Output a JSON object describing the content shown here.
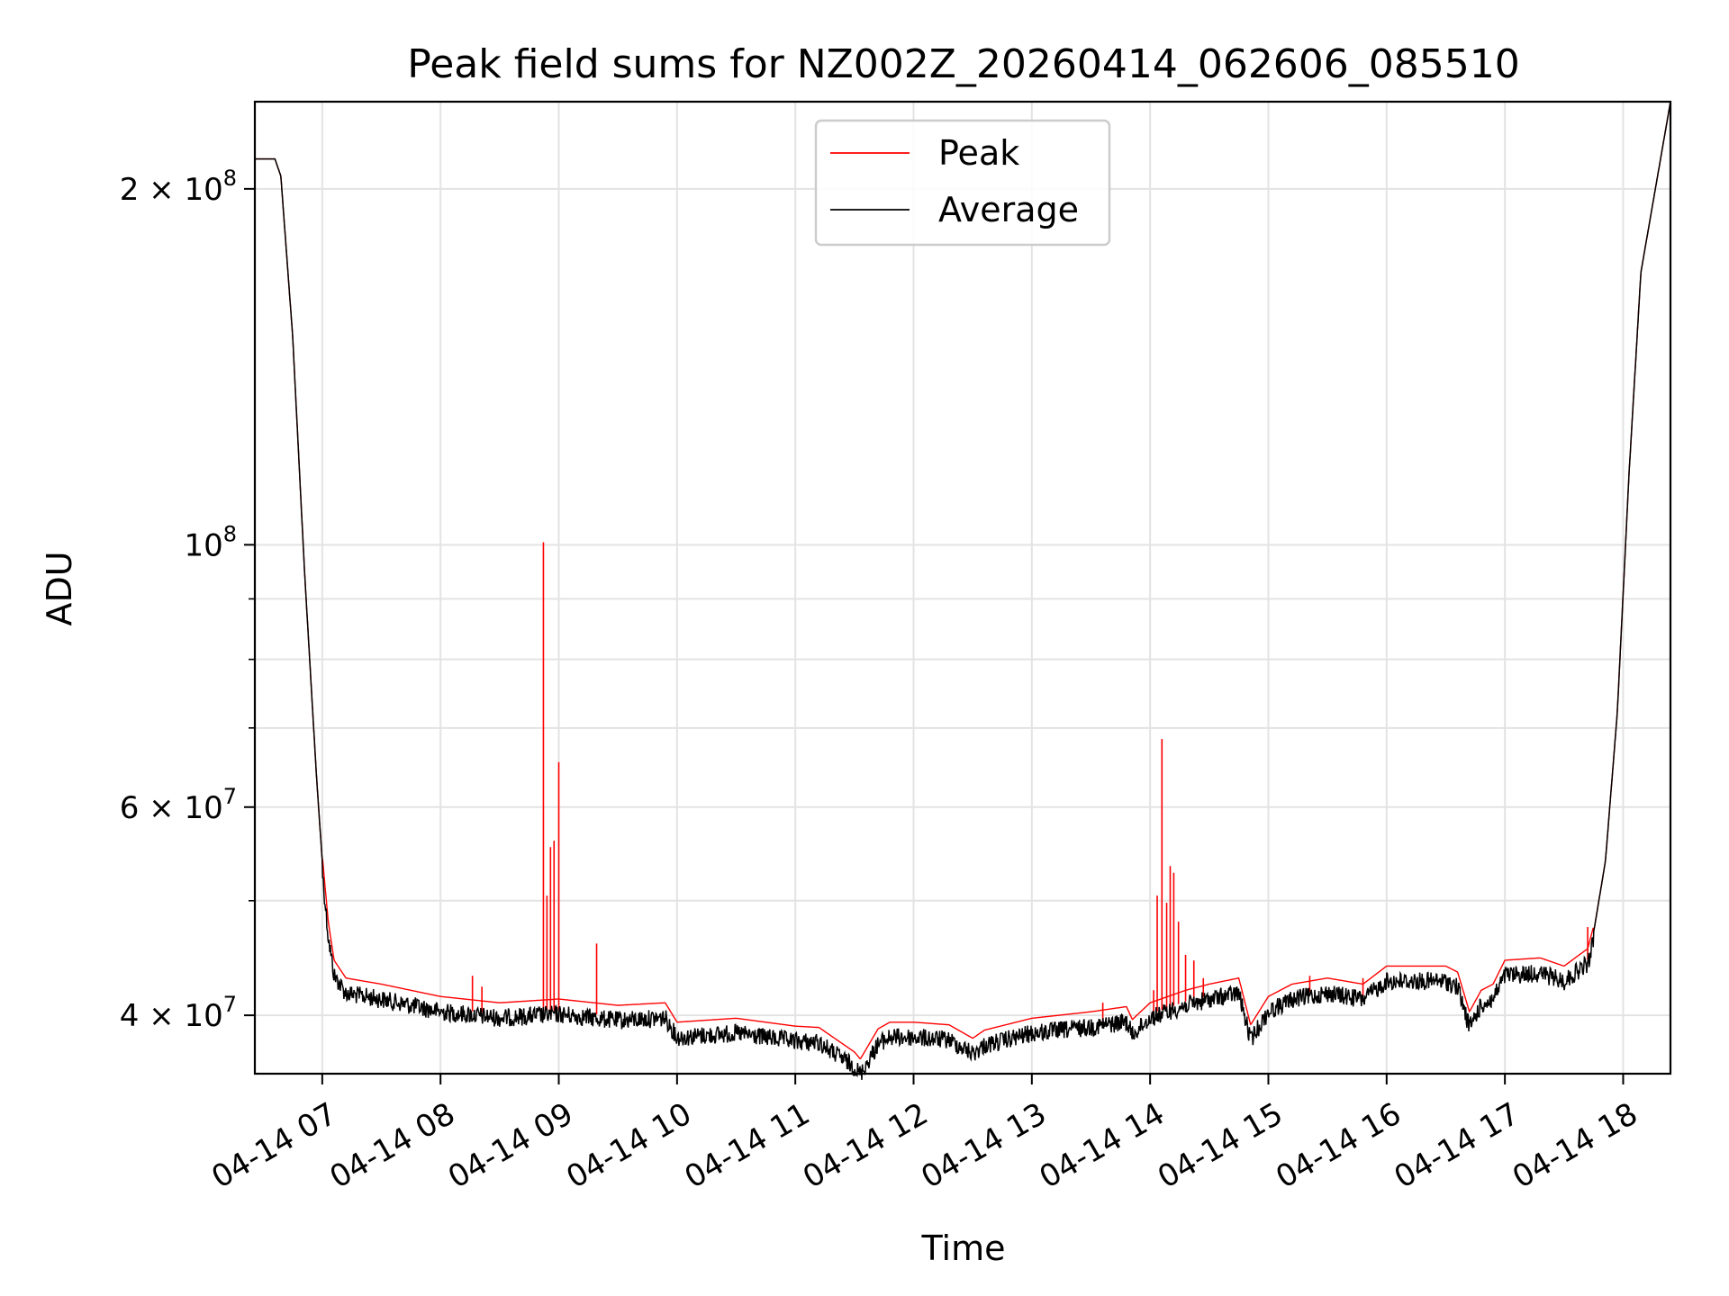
{
  "chart_data": {
    "type": "line",
    "title": "Peak field sums for NZ002Z_20260414_062606_085510",
    "xlabel": "Time",
    "ylabel": "ADU",
    "yscale": "log",
    "grid": true,
    "legend_position": "top-center",
    "x_unit": "hours",
    "xlim": [
      6.43,
      18.4
    ],
    "ylim": [
      35700000,
      237000000
    ],
    "x_ticks": [
      {
        "value": 7,
        "label": "04-14 07"
      },
      {
        "value": 8,
        "label": "04-14 08"
      },
      {
        "value": 9,
        "label": "04-14 09"
      },
      {
        "value": 10,
        "label": "04-14 10"
      },
      {
        "value": 11,
        "label": "04-14 11"
      },
      {
        "value": 12,
        "label": "04-14 12"
      },
      {
        "value": 13,
        "label": "04-14 13"
      },
      {
        "value": 14,
        "label": "04-14 14"
      },
      {
        "value": 15,
        "label": "04-14 15"
      },
      {
        "value": 16,
        "label": "04-14 16"
      },
      {
        "value": 17,
        "label": "04-14 17"
      },
      {
        "value": 18,
        "label": "04-14 18"
      }
    ],
    "y_ticks_major": [
      {
        "value": 40000000,
        "base": "4 × 10",
        "exp": "7"
      },
      {
        "value": 60000000,
        "base": "6 × 10",
        "exp": "7"
      },
      {
        "value": 100000000,
        "base": "10",
        "exp": "8"
      },
      {
        "value": 200000000,
        "base": "2 × 10",
        "exp": "8"
      }
    ],
    "y_ticks_minor": [
      50000000,
      70000000,
      80000000,
      90000000
    ],
    "series": [
      {
        "name": "Average",
        "color": "#000000",
        "x": [
          6.43,
          6.6,
          6.65,
          6.75,
          6.85,
          6.95,
          7.0,
          7.05,
          7.1,
          7.2,
          7.5,
          8.0,
          8.5,
          9.0,
          9.5,
          9.9,
          10.0,
          10.5,
          11.0,
          11.2,
          11.5,
          11.55,
          11.7,
          11.8,
          12.0,
          12.3,
          12.5,
          12.6,
          13.0,
          13.5,
          13.8,
          13.85,
          14.0,
          14.3,
          14.5,
          14.75,
          14.85,
          15.0,
          15.2,
          15.5,
          15.8,
          16.0,
          16.5,
          16.6,
          16.7,
          16.8,
          16.9,
          17.0,
          17.3,
          17.5,
          17.7,
          17.75,
          17.85,
          17.95,
          18.05,
          18.15,
          18.4
        ],
        "y": [
          212000000,
          212000000,
          205000000,
          150000000,
          95000000,
          64000000,
          54000000,
          47500000,
          44000000,
          42500000,
          42000000,
          41000000,
          40500000,
          40800000,
          40300000,
          40500000,
          39000000,
          39300000,
          38700000,
          38600000,
          36800000,
          36300000,
          38500000,
          39000000,
          39000000,
          38800000,
          37800000,
          38400000,
          39300000,
          39800000,
          40200000,
          39200000,
          40500000,
          41500000,
          42000000,
          42500000,
          38800000,
          41000000,
          42000000,
          42500000,
          42000000,
          43500000,
          43500000,
          43000000,
          39800000,
          41500000,
          42000000,
          44000000,
          44200000,
          43500000,
          45000000,
          47000000,
          54000000,
          72000000,
          115000000,
          170000000,
          237000000
        ]
      },
      {
        "name": "Peak",
        "color": "#ff0000",
        "spikes": [
          {
            "x": 8.27,
            "y": 43200000
          },
          {
            "x": 8.35,
            "y": 42300000
          },
          {
            "x": 8.87,
            "y": 100500000
          },
          {
            "x": 8.9,
            "y": 50500000
          },
          {
            "x": 8.93,
            "y": 55500000
          },
          {
            "x": 8.96,
            "y": 56200000
          },
          {
            "x": 9.0,
            "y": 65500000
          },
          {
            "x": 9.32,
            "y": 46000000
          },
          {
            "x": 13.6,
            "y": 41000000
          },
          {
            "x": 14.03,
            "y": 42000000
          },
          {
            "x": 14.06,
            "y": 50500000
          },
          {
            "x": 14.1,
            "y": 68500000
          },
          {
            "x": 14.14,
            "y": 49800000
          },
          {
            "x": 14.17,
            "y": 53500000
          },
          {
            "x": 14.2,
            "y": 52800000
          },
          {
            "x": 14.24,
            "y": 48000000
          },
          {
            "x": 14.3,
            "y": 45000000
          },
          {
            "x": 14.37,
            "y": 44500000
          },
          {
            "x": 14.45,
            "y": 43000000
          },
          {
            "x": 15.35,
            "y": 43200000
          },
          {
            "x": 15.8,
            "y": 43000000
          },
          {
            "x": 17.7,
            "y": 47500000
          }
        ]
      }
    ]
  }
}
